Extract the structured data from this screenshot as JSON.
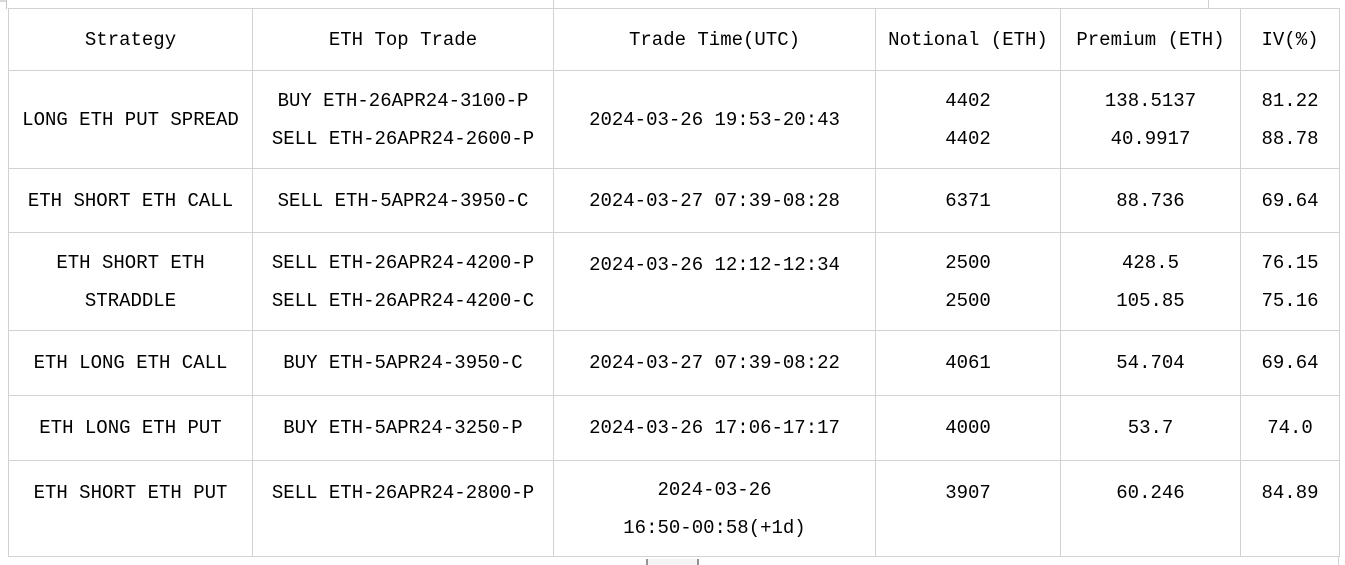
{
  "table": {
    "columns": [
      {
        "key": "strategy",
        "label": "Strategy"
      },
      {
        "key": "trade",
        "label": "ETH Top Trade"
      },
      {
        "key": "time",
        "label": "Trade Time(UTC)"
      },
      {
        "key": "notional",
        "label": "Notional (ETH)"
      },
      {
        "key": "premium",
        "label": "Premium (ETH)"
      },
      {
        "key": "iv",
        "label": "IV(%)"
      }
    ],
    "rows": [
      {
        "strategy": [
          "LONG ETH PUT SPREAD"
        ],
        "trade": [
          "BUY ETH-26APR24-3100-P",
          "SELL ETH-26APR24-2600-P"
        ],
        "time": [
          "2024-03-26 19:53-20:43"
        ],
        "notional": [
          "4402",
          "4402"
        ],
        "premium": [
          "138.5137",
          "40.9917"
        ],
        "iv": [
          "81.22",
          "88.78"
        ]
      },
      {
        "strategy": [
          "ETH SHORT ETH CALL"
        ],
        "trade": [
          "SELL ETH-5APR24-3950-C"
        ],
        "time": [
          "2024-03-27 07:39-08:28"
        ],
        "notional": [
          "6371"
        ],
        "premium": [
          "88.736"
        ],
        "iv": [
          "69.64"
        ]
      },
      {
        "strategy": [
          "ETH SHORT ETH",
          "STRADDLE"
        ],
        "trade": [
          "SELL ETH-26APR24-4200-P",
          "SELL ETH-26APR24-4200-C"
        ],
        "time": [
          "2024-03-26 12:12-12:34"
        ],
        "notional": [
          "2500",
          "2500"
        ],
        "premium": [
          "428.5",
          "105.85"
        ],
        "iv": [
          "76.15",
          "75.16"
        ]
      },
      {
        "strategy": [
          "ETH LONG ETH CALL"
        ],
        "trade": [
          "BUY ETH-5APR24-3950-C"
        ],
        "time": [
          "2024-03-27 07:39-08:22"
        ],
        "notional": [
          "4061"
        ],
        "premium": [
          "54.704"
        ],
        "iv": [
          "69.64"
        ]
      },
      {
        "strategy": [
          "ETH LONG ETH PUT"
        ],
        "trade": [
          "BUY ETH-5APR24-3250-P"
        ],
        "time": [
          "2024-03-26 17:06-17:17"
        ],
        "notional": [
          "4000"
        ],
        "premium": [
          "53.7"
        ],
        "iv": [
          "74.0"
        ]
      },
      {
        "strategy": [
          "ETH SHORT ETH PUT"
        ],
        "trade": [
          "SELL ETH-26APR24-2800-P"
        ],
        "time": [
          "2024-03-26",
          "16:50-00:58(+1d)"
        ],
        "notional": [
          "3907"
        ],
        "premium": [
          "60.246"
        ],
        "iv": [
          "84.89"
        ]
      }
    ]
  },
  "colors": {
    "background": "#ffffff",
    "text": "#000000",
    "gridline": "#d2d2d2",
    "scrollbar_thumb": "#f4f4f4",
    "scrollbar_cap": "#949494"
  }
}
